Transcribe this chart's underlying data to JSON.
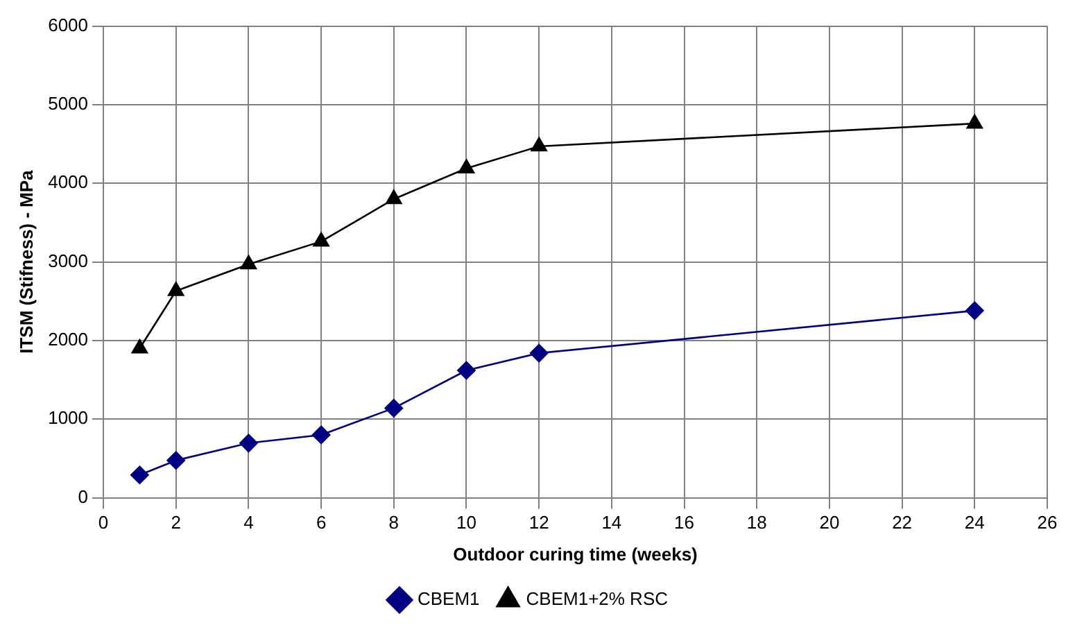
{
  "chart_data": {
    "type": "line",
    "xlabel": "Outdoor curing time (weeks)",
    "ylabel": "ITSM (Stifness) - MPa",
    "x": [
      1,
      2,
      4,
      6,
      8,
      10,
      12,
      24
    ],
    "series": [
      {
        "name": "CBEM1",
        "color": "#000080",
        "marker": "diamond",
        "values": [
          290,
          475,
          695,
          800,
          1140,
          1620,
          1840,
          2380
        ]
      },
      {
        "name": "CBEM1+2% RSC",
        "color": "#000000",
        "marker": "triangle",
        "values": [
          1900,
          2630,
          2970,
          3260,
          3800,
          4190,
          4470,
          4760
        ]
      }
    ],
    "xlim": [
      0,
      26
    ],
    "xticks": [
      0,
      2,
      4,
      6,
      8,
      10,
      12,
      14,
      16,
      18,
      20,
      22,
      24,
      26
    ],
    "ylim": [
      0,
      6000
    ],
    "yticks": [
      0,
      1000,
      2000,
      3000,
      4000,
      5000,
      6000
    ],
    "grid": true,
    "legend": "bottom",
    "line_style": "solid"
  }
}
